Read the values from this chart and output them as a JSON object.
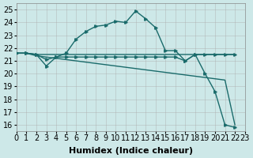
{
  "xlabel": "Humidex (Indice chaleur)",
  "background_color": "#cde8e8",
  "line_color": "#1a6b6b",
  "xlim": [
    0,
    23
  ],
  "ylim": [
    15.5,
    25.5
  ],
  "xticks": [
    0,
    1,
    2,
    3,
    4,
    5,
    6,
    7,
    8,
    9,
    10,
    11,
    12,
    13,
    14,
    15,
    16,
    17,
    18,
    19,
    20,
    21,
    22,
    23
  ],
  "yticks": [
    16,
    17,
    18,
    19,
    20,
    21,
    22,
    23,
    24,
    25
  ],
  "series": [
    {
      "x": [
        0,
        1,
        2,
        3,
        4,
        5,
        6,
        7,
        8,
        9,
        10,
        11,
        12,
        13,
        14,
        15,
        16,
        17,
        18,
        19,
        20,
        21,
        22
      ],
      "y": [
        21.6,
        21.6,
        21.5,
        20.6,
        21.3,
        21.6,
        22.7,
        23.3,
        23.7,
        23.8,
        24.1,
        24.0,
        24.9,
        24.3,
        23.6,
        21.8,
        21.8,
        21.0,
        21.5,
        20.0,
        18.6,
        16.0,
        15.8
      ],
      "marker": true
    },
    {
      "x": [
        0,
        1,
        2,
        3,
        4,
        5,
        6,
        7,
        8,
        9,
        10,
        11,
        12,
        13,
        14,
        15,
        16,
        17,
        18,
        19,
        20,
        21,
        22
      ],
      "y": [
        21.6,
        21.6,
        21.5,
        21.1,
        21.3,
        21.3,
        21.3,
        21.3,
        21.3,
        21.3,
        21.3,
        21.3,
        21.3,
        21.3,
        21.3,
        21.3,
        21.3,
        21.0,
        21.5,
        21.5,
        21.5,
        21.5,
        21.5
      ],
      "marker": true
    },
    {
      "x": [
        0,
        1,
        2,
        3,
        4,
        5,
        6,
        7,
        8,
        9,
        10,
        11,
        12,
        13,
        14,
        15,
        16,
        17,
        18,
        19,
        20,
        21,
        22
      ],
      "y": [
        21.6,
        21.6,
        21.5,
        21.5,
        21.5,
        21.5,
        21.5,
        21.5,
        21.5,
        21.5,
        21.5,
        21.5,
        21.5,
        21.5,
        21.5,
        21.5,
        21.5,
        21.5,
        21.5,
        21.5,
        21.5,
        21.5,
        21.5
      ],
      "marker": false
    },
    {
      "x": [
        0,
        1,
        2,
        3,
        4,
        5,
        6,
        7,
        8,
        9,
        10,
        11,
        12,
        13,
        14,
        15,
        16,
        17,
        18,
        19,
        20,
        21,
        22
      ],
      "y": [
        21.6,
        21.6,
        21.4,
        21.3,
        21.2,
        21.1,
        21.0,
        20.9,
        20.8,
        20.7,
        20.6,
        20.5,
        20.4,
        20.3,
        20.2,
        20.1,
        20.0,
        19.9,
        19.8,
        19.7,
        19.6,
        19.5,
        16.0
      ],
      "marker": false
    }
  ],
  "grid_color": "#aaaaaa",
  "font_size": 7
}
